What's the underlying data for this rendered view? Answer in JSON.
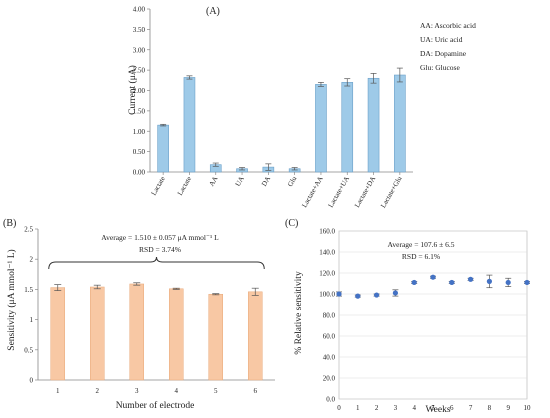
{
  "chart_data": [
    {
      "panel": "(A)",
      "type": "bar",
      "ylabel": "Current (μA)",
      "ylim": [
        0,
        4.0
      ],
      "yticks": [
        "0.00",
        "0.50",
        "1.00",
        "1.50",
        "2.00",
        "2.50",
        "3.00",
        "3.50",
        "4.00"
      ],
      "categories": [
        "Lactate",
        "Lactate",
        "AA",
        "UA",
        "DA",
        "Glu",
        "Lactate+AA",
        "Lactate+UA",
        "Lactate+DA",
        "Lactate+Glu"
      ],
      "values": [
        1.15,
        2.32,
        0.18,
        0.08,
        0.12,
        0.08,
        2.15,
        2.2,
        2.3,
        2.38
      ],
      "errors": [
        0.02,
        0.04,
        0.04,
        0.03,
        0.08,
        0.03,
        0.05,
        0.09,
        0.12,
        0.17
      ],
      "bar_color": "#9ecae8",
      "legend": [
        "AA: Ascorbic acid",
        "UA: Uric acid",
        "DA: Dopamine",
        "Glu: Glucose"
      ],
      "grid": false
    },
    {
      "panel": "(B)",
      "type": "bar",
      "xlabel": "Number of electrode",
      "ylabel": "Sensitivity (μA mmol⁻¹ L)",
      "ylim": [
        0,
        2.5
      ],
      "yticks": [
        "0",
        "0.5",
        "1",
        "1.5",
        "2",
        "2.5"
      ],
      "categories": [
        "1",
        "2",
        "3",
        "4",
        "5",
        "6"
      ],
      "values": [
        1.53,
        1.54,
        1.59,
        1.51,
        1.42,
        1.46
      ],
      "errors": [
        0.05,
        0.03,
        0.02,
        0.01,
        0.01,
        0.06
      ],
      "bar_color": "#f8c8a4",
      "annotations": [
        "Average = 1.510 ± 0.057  μA mmol⁻¹ L",
        "RSD = 3.74%"
      ],
      "grid": false
    },
    {
      "panel": "(C)",
      "type": "scatter",
      "xlabel": "Weeks",
      "ylabel": "% Relative sensitivity",
      "xlim": [
        0,
        10
      ],
      "ylim": [
        0,
        160
      ],
      "xticks": [
        "0",
        "1",
        "2",
        "3",
        "4",
        "5",
        "6",
        "7",
        "8",
        "9",
        "10"
      ],
      "yticks": [
        "0.0",
        "20.0",
        "40.0",
        "60.0",
        "80.0",
        "100.0",
        "120.0",
        "140.0",
        "160.0"
      ],
      "x": [
        0,
        1,
        2,
        3,
        4,
        5,
        6,
        7,
        8,
        9,
        10
      ],
      "y": [
        100,
        98,
        99,
        101,
        111,
        116,
        111,
        114,
        112,
        111,
        111
      ],
      "errors": [
        2,
        1,
        1,
        3,
        1,
        1,
        1,
        1,
        6,
        4,
        1
      ],
      "point_color": "#4472c4",
      "annotations": [
        "Average = 107.6 ± 6.5",
        "RSD = 6.1%"
      ],
      "grid": true
    }
  ]
}
